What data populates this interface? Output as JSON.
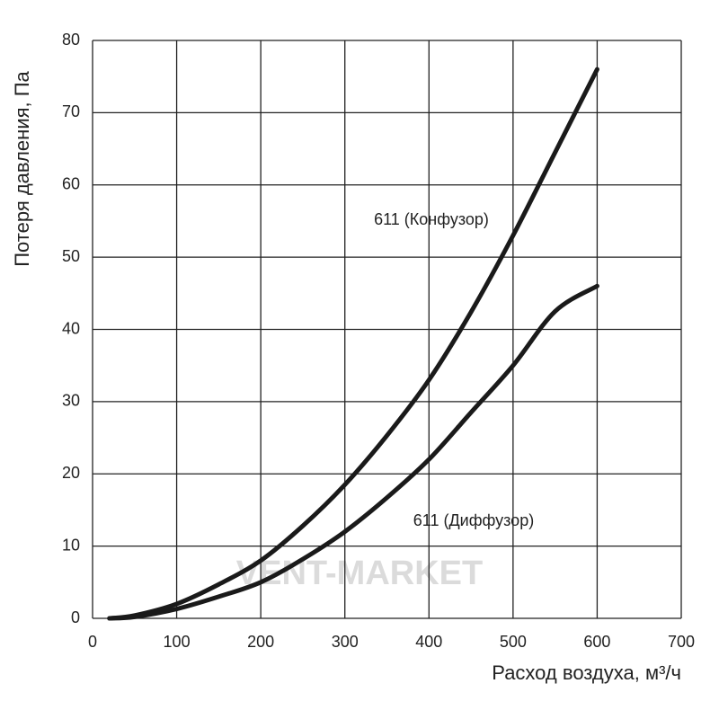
{
  "chart_data": {
    "type": "line",
    "xlabel": "Расход воздуха, м³/ч",
    "ylabel": "Потеря давления, Па",
    "watermark": "VENT-MARKET",
    "x": [
      20,
      50,
      100,
      150,
      200,
      250,
      300,
      350,
      400,
      450,
      500,
      550,
      600
    ],
    "series": [
      {
        "name": "611 (Конфузор)",
        "color": "#1a1a1a",
        "values": [
          0,
          0.4,
          2,
          4.7,
          8,
          12.8,
          18.5,
          25.3,
          33,
          42.4,
          53,
          64.5,
          76
        ]
      },
      {
        "name": "611 (Диффузор)",
        "color": "#1a1a1a",
        "values": [
          0,
          0.2,
          1.3,
          3,
          5,
          8.2,
          12,
          16.7,
          22,
          28.5,
          35,
          42.5,
          46
        ]
      }
    ],
    "xlim": [
      0,
      700
    ],
    "xticks": [
      0,
      100,
      200,
      300,
      400,
      500,
      600,
      700
    ],
    "ylim": [
      0,
      80
    ],
    "yticks": [
      0,
      10,
      20,
      30,
      40,
      50,
      60,
      70,
      80
    ],
    "grid": true
  }
}
